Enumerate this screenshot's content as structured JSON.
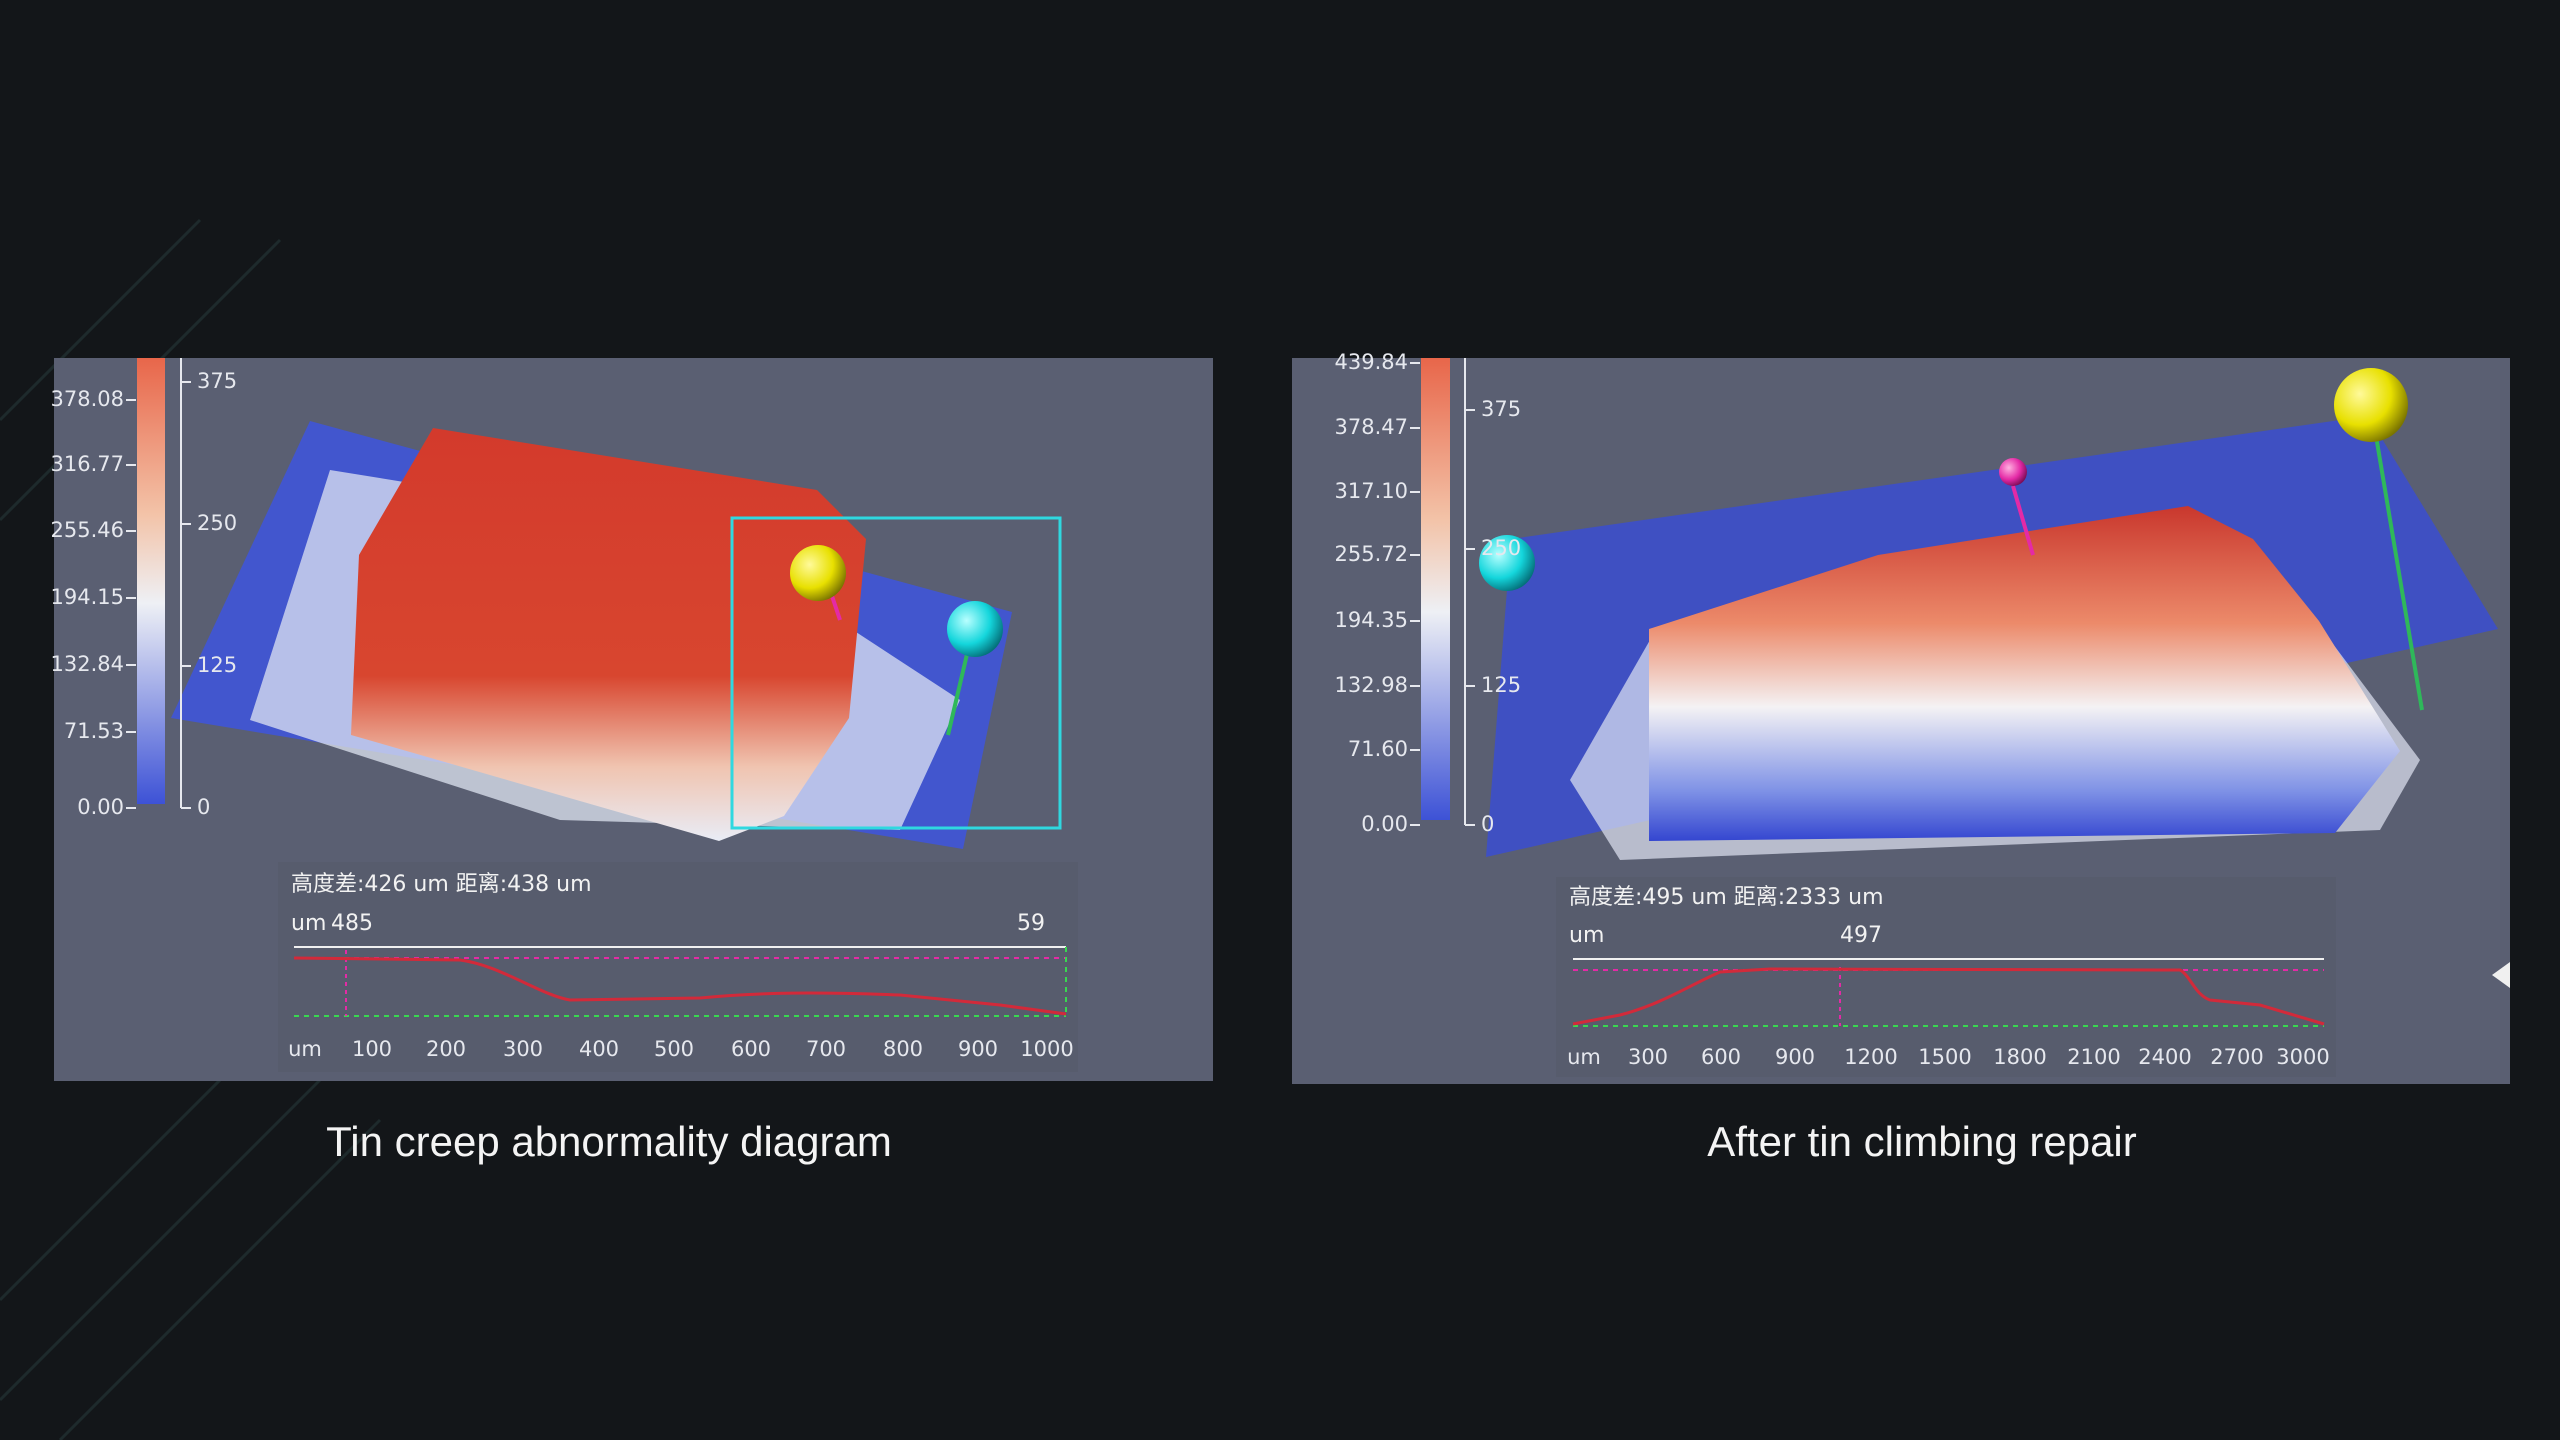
{
  "panels": [
    {
      "caption": "Tin creep abnormality diagram",
      "colorbar_labels": [
        "378.08",
        "316.77",
        "255.46",
        "194.15",
        "132.84",
        "71.53",
        "0.00"
      ],
      "scale_labels": [
        375,
        250,
        125,
        0
      ],
      "measurement": "高度差:426 um 距离:438 um",
      "profile": {
        "unit": "um",
        "peak_label": 485,
        "end_label": 59,
        "axis_labels": [
          100,
          200,
          300,
          400,
          500,
          600,
          700,
          800,
          900,
          1000
        ]
      }
    },
    {
      "caption": "After tin climbing repair",
      "colorbar_labels": [
        "439.84",
        "378.47",
        "317.10",
        "255.72",
        "194.35",
        "132.98",
        "71.60",
        "0.00"
      ],
      "scale_labels": [
        375,
        250,
        125,
        0
      ],
      "measurement": "高度差:495 um 距离:2333 um",
      "profile": {
        "unit": "um",
        "peak_label": 497,
        "axis_labels": [
          300,
          600,
          900,
          1200,
          1500,
          1800,
          2100,
          2400,
          2700,
          3000
        ]
      }
    }
  ]
}
